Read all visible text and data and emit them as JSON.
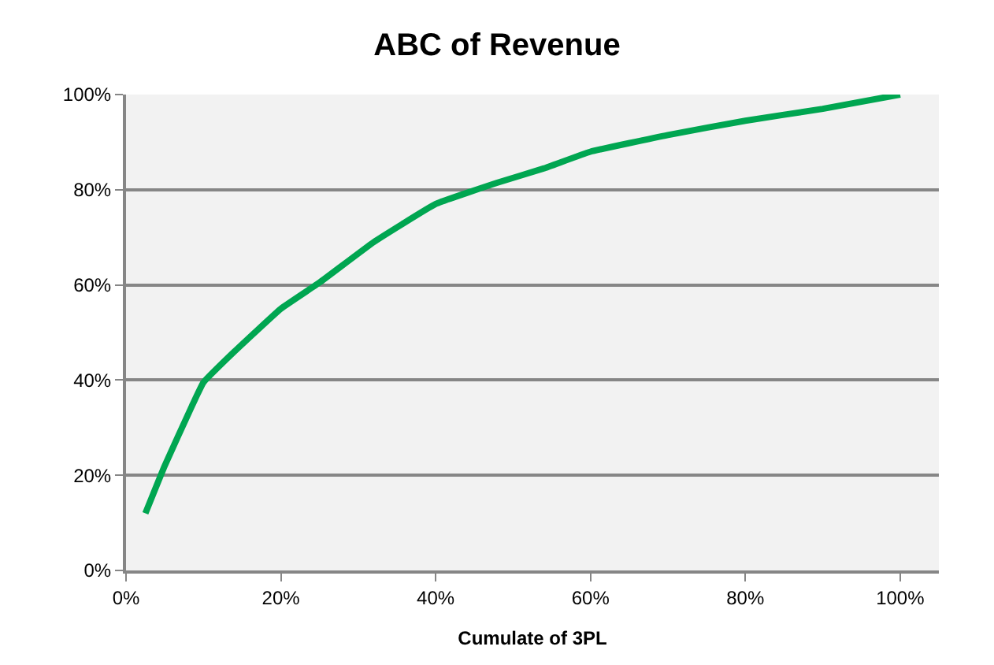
{
  "chart_data": {
    "type": "line",
    "title": "ABC of Revenue",
    "xlabel": "Cumulate of 3PL",
    "x": [
      2.5,
      5,
      8.5,
      10,
      14,
      20,
      25,
      32,
      40,
      48,
      54,
      60,
      70,
      80,
      90,
      100
    ],
    "series": [
      {
        "color": "#00a651",
        "values": [
          12,
          22,
          34.5,
          39.5,
          46,
          55,
          60.5,
          69,
          77,
          81.5,
          84.5,
          88,
          91.5,
          94.5,
          97,
          100
        ]
      }
    ],
    "xlim": [
      0,
      105
    ],
    "xticks": [
      {
        "value": 0,
        "label": "0%"
      },
      {
        "value": 20,
        "label": "20%"
      },
      {
        "value": 40,
        "label": "40%"
      },
      {
        "value": 60,
        "label": "60%"
      },
      {
        "value": 80,
        "label": "80%"
      },
      {
        "value": 100,
        "label": "100%"
      }
    ],
    "ylim": [
      0,
      100
    ],
    "yticks": [
      {
        "value": 0,
        "label": "0%"
      },
      {
        "value": 20,
        "label": "20%"
      },
      {
        "value": 40,
        "label": "40%"
      },
      {
        "value": 60,
        "label": "60%"
      },
      {
        "value": 80,
        "label": "80%"
      },
      {
        "value": 100,
        "label": "100%"
      }
    ],
    "grid": "y",
    "marker": "none",
    "line_style": "solid"
  }
}
